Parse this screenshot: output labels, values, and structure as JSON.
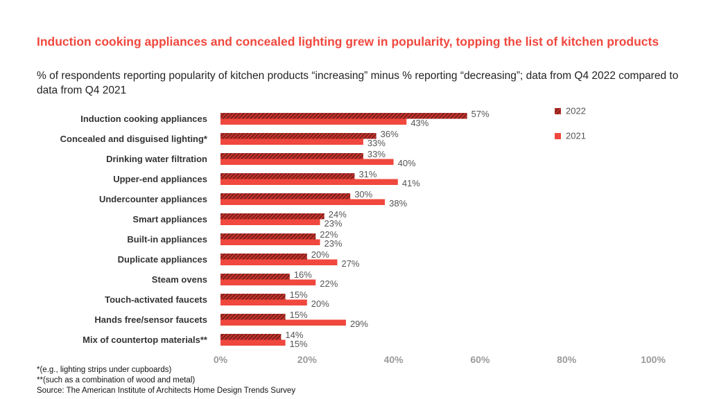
{
  "chart_data": {
    "type": "bar",
    "orientation": "horizontal",
    "title": "Induction cooking appliances and concealed lighting grew in popularity, topping the list of kitchen products",
    "subtitle": "% of respondents reporting popularity of kitchen products “increasing” minus % reporting “decreasing”; data from Q4 2022 compared to data from Q4 2021",
    "categories": [
      "Induction cooking appliances",
      "Concealed and disguised lighting*",
      "Drinking water filtration",
      "Upper-end appliances",
      "Undercounter appliances",
      "Smart appliances",
      "Built-in appliances",
      "Duplicate appliances",
      "Steam ovens",
      "Touch-activated faucets",
      "Hands free/sensor faucets",
      "Mix of countertop materials**"
    ],
    "series": [
      {
        "name": "2022",
        "values": [
          57,
          36,
          33,
          31,
          30,
          24,
          22,
          20,
          16,
          15,
          15,
          14
        ],
        "color": "#c0302a",
        "pattern": "hatched"
      },
      {
        "name": "2021",
        "values": [
          43,
          33,
          40,
          41,
          38,
          23,
          23,
          27,
          22,
          20,
          29,
          15
        ],
        "color": "#f0483e"
      }
    ],
    "value_suffix": "%",
    "xlim": [
      0,
      100
    ],
    "xticks": [
      "0%",
      "20%",
      "40%",
      "60%",
      "80%",
      "100%"
    ],
    "xtick_values": [
      0,
      20,
      40,
      60,
      80,
      100
    ],
    "grid": false,
    "legend_position": "top-right"
  },
  "footnotes": [
    "*(e.g., lighting strips under cupboards)",
    "**(such as a combination of wood and metal)",
    "Source: The American Institute of Architects Home Design Trends Survey"
  ]
}
